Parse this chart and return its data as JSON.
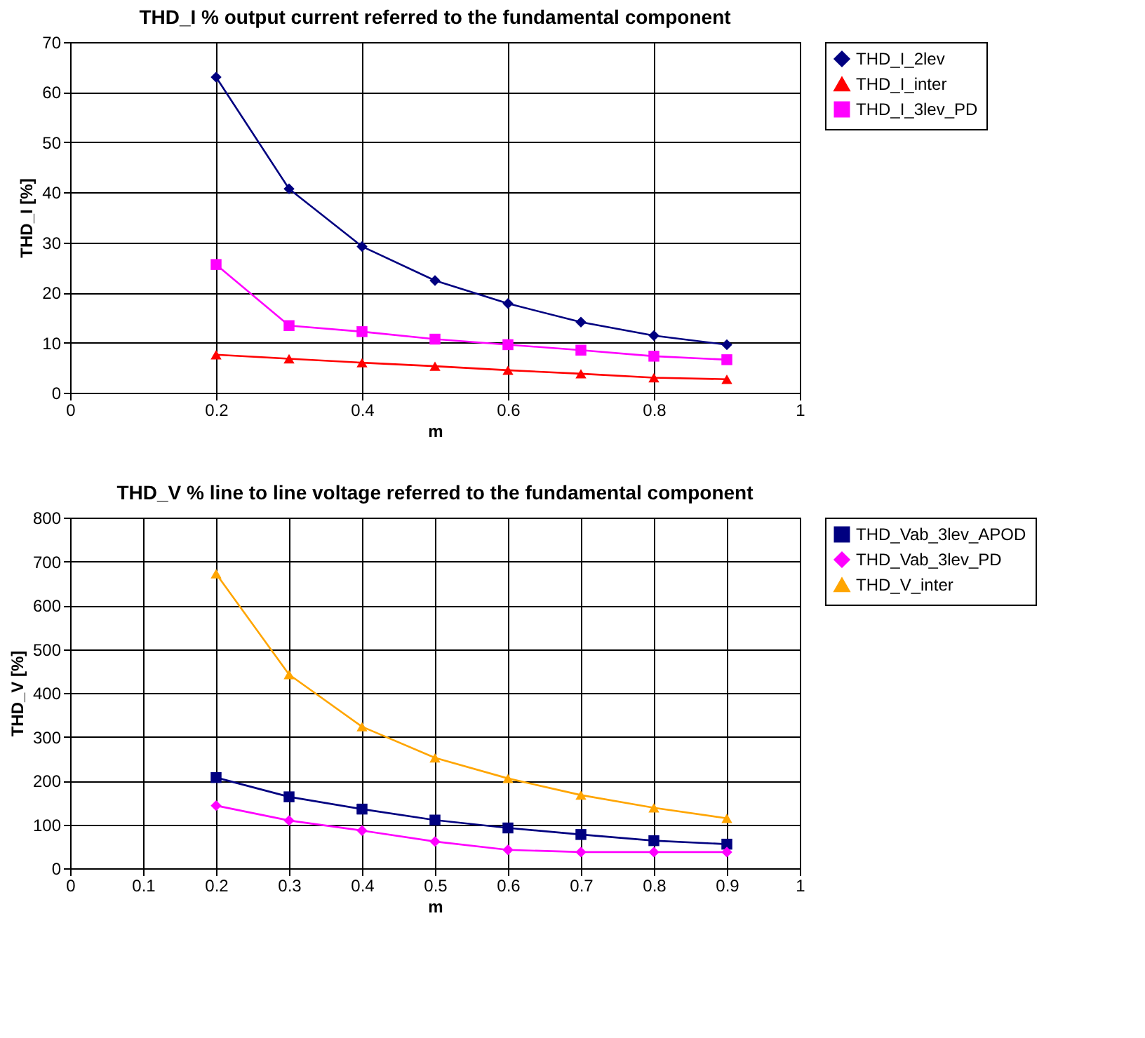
{
  "chart_data": [
    {
      "type": "line",
      "title": "THD_I % output current referred to the fundamental component",
      "xlabel": "m",
      "ylabel": "THD_I [%]",
      "x": [
        0.2,
        0.3,
        0.4,
        0.5,
        0.6,
        0.7,
        0.8,
        0.9
      ],
      "xlim": [
        0,
        1
      ],
      "xticks": [
        0,
        0.2,
        0.4,
        0.6,
        0.8,
        1
      ],
      "ylim": [
        0,
        70
      ],
      "yticks": [
        0,
        10,
        20,
        30,
        40,
        50,
        60,
        70
      ],
      "grid": true,
      "legend": "right",
      "series": [
        {
          "name": "THD_I_2lev",
          "color": "#000080",
          "marker": "diamond",
          "values": [
            63,
            40.7,
            29.2,
            22.4,
            17.8,
            14.1,
            11.4,
            9.6
          ]
        },
        {
          "name": "THD_I_inter",
          "color": "#ff0000",
          "marker": "triangle",
          "values": [
            7.6,
            6.8,
            6.0,
            5.3,
            4.5,
            3.8,
            3.0,
            2.7
          ]
        },
        {
          "name": "THD_I_3lev_PD",
          "color": "#ff00ff",
          "marker": "square",
          "values": [
            25.6,
            13.4,
            12.2,
            10.7,
            9.6,
            8.5,
            7.3,
            6.6
          ]
        }
      ]
    },
    {
      "type": "line",
      "title": "THD_V % line to line voltage referred to the fundamental component",
      "xlabel": "m",
      "ylabel": "THD_V [%]",
      "x": [
        0.2,
        0.3,
        0.4,
        0.5,
        0.6,
        0.7,
        0.8,
        0.9
      ],
      "xlim": [
        0,
        1
      ],
      "xticks": [
        0,
        0.1,
        0.2,
        0.3,
        0.4,
        0.5,
        0.6,
        0.7,
        0.8,
        0.9,
        1
      ],
      "ylim": [
        0,
        800
      ],
      "yticks": [
        0,
        100,
        200,
        300,
        400,
        500,
        600,
        700,
        800
      ],
      "grid": true,
      "legend": "right",
      "series": [
        {
          "name": "THD_Vab_3lev_APOD",
          "color": "#000080",
          "marker": "square",
          "values": [
            207,
            163,
            135,
            110,
            92,
            77,
            63,
            55
          ]
        },
        {
          "name": "THD_Vab_3lev_PD",
          "color": "#ff00ff",
          "marker": "diamond",
          "values": [
            143,
            109,
            86,
            61,
            42,
            37,
            37,
            37
          ]
        },
        {
          "name": "THD_V_inter",
          "color": "#ffa500",
          "marker": "triangle",
          "values": [
            672,
            442,
            323,
            252,
            205,
            167,
            138,
            114
          ]
        }
      ]
    }
  ]
}
